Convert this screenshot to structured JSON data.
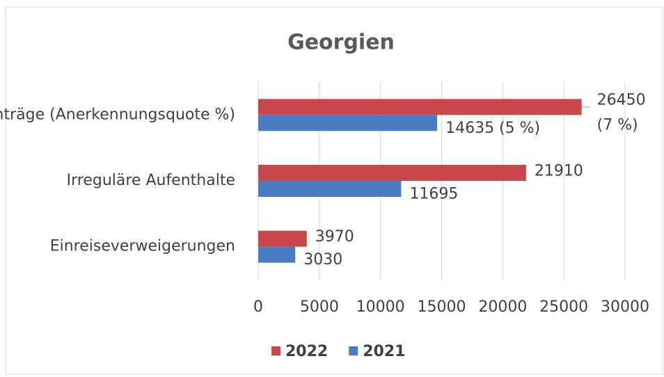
{
  "chart_data": {
    "type": "bar",
    "orientation": "horizontal",
    "title": "Georgien",
    "categories": [
      "Asylanträge (Anerkennungsquote %)",
      "Irreguläre Aufenthalte",
      "Einreiseverweigerungen"
    ],
    "series": [
      {
        "name": "2022",
        "color": "#c9474b",
        "values": [
          26450,
          21910,
          3970
        ],
        "value_labels": [
          "26450 (7 %)",
          "21910",
          "3970"
        ]
      },
      {
        "name": "2021",
        "color": "#4a7cc1",
        "values": [
          14635,
          11695,
          3030
        ],
        "value_labels": [
          "14635 (5 %)",
          "11695",
          "3030"
        ]
      }
    ],
    "xlim": [
      0,
      30000
    ],
    "xticks": [
      0,
      5000,
      10000,
      15000,
      20000,
      25000,
      30000
    ],
    "grid": true,
    "legend": "bottom"
  }
}
